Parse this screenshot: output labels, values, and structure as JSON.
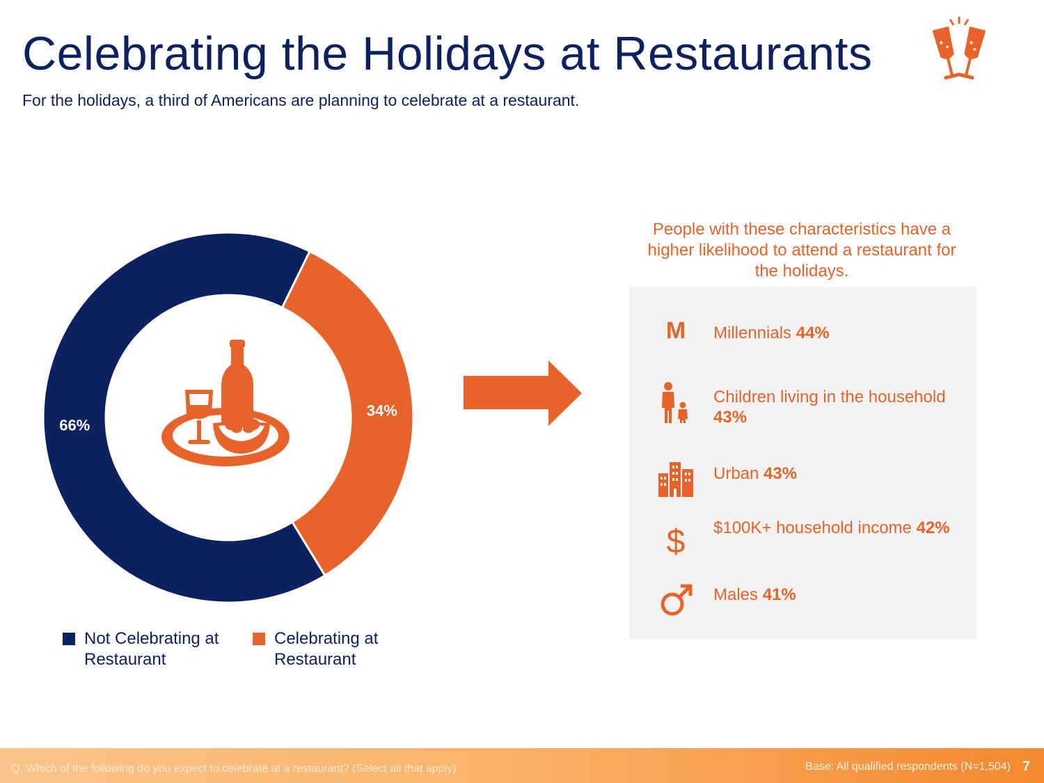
{
  "header": {
    "title": "Celebrating the Holidays at Restaurants",
    "subtitle": "For the holidays, a third of Americans are planning to celebrate at a restaurant."
  },
  "colors": {
    "navy": "#0d2160",
    "orange": "#e8632a",
    "panel": "#f2f2f2"
  },
  "icons": {
    "title": "champagne-toast-icon",
    "donut_center": "restaurant-meal-icon",
    "arrow": "right-arrow"
  },
  "chart_data": {
    "type": "pie",
    "donut": true,
    "series": [
      {
        "name": "Not Celebrating at Restaurant",
        "value": 66,
        "label": "66%",
        "color": "#0d2160"
      },
      {
        "name": "Celebrating at Restaurant",
        "value": 34,
        "label": "34%",
        "color": "#e8632a"
      }
    ],
    "legend": [
      {
        "label": "Not Celebrating at Restaurant",
        "color": "#0d2160"
      },
      {
        "label": "Celebrating at Restaurant",
        "color": "#e8632a"
      }
    ],
    "legend_position": "bottom"
  },
  "callout": {
    "heading": "People with these characteristics have a higher likelihood to attend a restaurant for the holidays.",
    "items": [
      {
        "icon": "letter-m-icon",
        "label": "Millennials",
        "value": "44%"
      },
      {
        "icon": "parent-child-icon",
        "label": "Children living in the household",
        "value": "43%"
      },
      {
        "icon": "city-buildings-icon",
        "label": "Urban",
        "value": "43%"
      },
      {
        "icon": "dollar-sign-icon",
        "label": "$100K+ household income",
        "value": "42%"
      },
      {
        "icon": "male-symbol-icon",
        "label": "Males",
        "value": "41%"
      }
    ]
  },
  "footer": {
    "question": "Q. Which of the following do you expect to celebrate at a restaurant? (Select all that apply)",
    "base": "Base: All qualified respondents (N=1,504)",
    "page": "7"
  }
}
